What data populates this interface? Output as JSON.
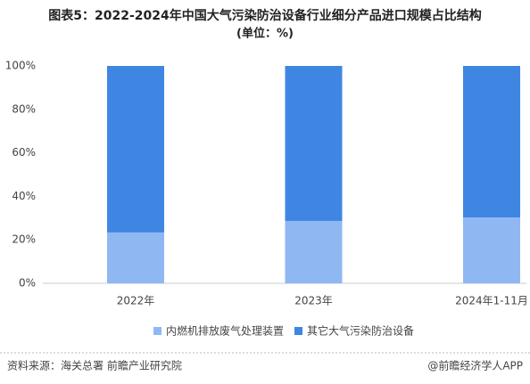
{
  "chart_data": {
    "type": "stacked_bar",
    "title": "图表5：2022-2024年中国大气污染防治设备行业细分产品进口规模占比结构",
    "subtitle": "(单位：%)",
    "categories": [
      "2022年",
      "2023年",
      "2024年1-11月"
    ],
    "series": [
      {
        "name": "内燃机排放废气处理装置",
        "color": "#8fb8f2",
        "values": [
          23.4,
          28.7,
          30.3
        ]
      },
      {
        "name": "其它大气污染防治设备",
        "color": "#3f86e3",
        "values": [
          76.6,
          71.3,
          69.7
        ]
      }
    ],
    "ylim": [
      0,
      100
    ],
    "yticks": [
      {
        "value": 0,
        "label": "0%"
      },
      {
        "value": 20,
        "label": "20%"
      },
      {
        "value": 40,
        "label": "40%"
      },
      {
        "value": 60,
        "label": "60%"
      },
      {
        "value": 80,
        "label": "80%"
      },
      {
        "value": 100,
        "label": "100%"
      }
    ],
    "legend": "bottom",
    "source": "资料来源：海关总署 前瞻产业研究院",
    "credit": "@前瞻经济学人APP"
  }
}
